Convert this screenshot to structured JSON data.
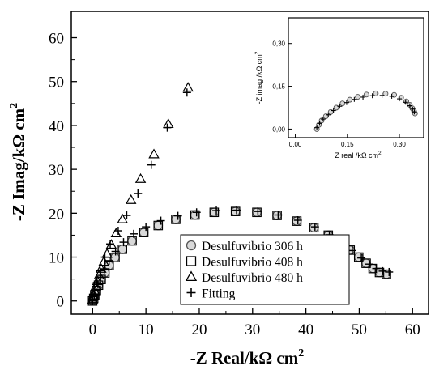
{
  "chart_data": {
    "type": "scatter",
    "xlabel_main": "-Z Real/kΩ cm",
    "xlabel_sup": "2",
    "ylabel_main": "-Z Imag/kΩ cm",
    "ylabel_sup": "2",
    "xlim": [
      -4,
      63
    ],
    "ylim": [
      -3,
      66
    ],
    "xticks": [
      "0",
      "10",
      "20",
      "30",
      "40",
      "50",
      "60"
    ],
    "yticks": [
      "0",
      "10",
      "20",
      "30",
      "40",
      "50",
      "60"
    ],
    "legend_position": "lower-center",
    "series": [
      {
        "name": "Desulfuvibrio 306 h",
        "marker": "circle",
        "points": [
          [
            0,
            0
          ],
          [
            0.2,
            0.6
          ],
          [
            0.4,
            1.4
          ],
          [
            0.7,
            2.4
          ],
          [
            1.1,
            3.6
          ],
          [
            1.6,
            4.9
          ],
          [
            2.3,
            6.4
          ],
          [
            3.1,
            8.1
          ],
          [
            4.2,
            9.9
          ],
          [
            5.6,
            11.8
          ],
          [
            7.4,
            13.7
          ],
          [
            9.6,
            15.6
          ],
          [
            12.3,
            17.2
          ],
          [
            15.6,
            18.6
          ],
          [
            19.2,
            19.6
          ],
          [
            22.8,
            20.2
          ],
          [
            26.8,
            20.4
          ],
          [
            30.8,
            20.2
          ],
          [
            34.6,
            19.5
          ],
          [
            38.3,
            18.2
          ],
          [
            41.5,
            16.7
          ],
          [
            44.2,
            15.0
          ],
          [
            46.4,
            13.3
          ],
          [
            48.3,
            11.6
          ],
          [
            49.9,
            10.0
          ],
          [
            51.3,
            8.6
          ],
          [
            52.6,
            7.4
          ],
          [
            53.8,
            6.5
          ],
          [
            55.1,
            6.1
          ]
        ]
      },
      {
        "name": "Desulfuvibrio 408 h",
        "marker": "square",
        "points": [
          [
            0,
            0
          ],
          [
            0.2,
            0.6
          ],
          [
            0.4,
            1.4
          ],
          [
            0.7,
            2.4
          ],
          [
            1.1,
            3.6
          ],
          [
            1.6,
            4.9
          ],
          [
            2.3,
            6.4
          ],
          [
            3.1,
            8.1
          ],
          [
            4.2,
            9.9
          ],
          [
            5.6,
            11.8
          ],
          [
            7.4,
            13.7
          ],
          [
            9.6,
            15.6
          ],
          [
            12.3,
            17.2
          ],
          [
            15.6,
            18.6
          ],
          [
            19.2,
            19.6
          ],
          [
            22.8,
            20.2
          ],
          [
            26.8,
            20.4
          ],
          [
            30.8,
            20.2
          ],
          [
            34.6,
            19.5
          ],
          [
            38.3,
            18.2
          ],
          [
            41.5,
            16.7
          ],
          [
            44.2,
            15.0
          ],
          [
            46.4,
            13.3
          ],
          [
            48.3,
            11.6
          ],
          [
            49.9,
            10.0
          ],
          [
            51.3,
            8.6
          ],
          [
            52.6,
            7.4
          ],
          [
            53.8,
            6.5
          ],
          [
            55.1,
            6.1
          ]
        ]
      },
      {
        "name": "Desulfuvibrio 480 h",
        "marker": "triangle",
        "points": [
          [
            0,
            0.3
          ],
          [
            0.2,
            1.2
          ],
          [
            0.4,
            2.2
          ],
          [
            0.6,
            3.3
          ],
          [
            0.9,
            4.5
          ],
          [
            1.2,
            5.8
          ],
          [
            1.6,
            7.3
          ],
          [
            2.1,
            8.9
          ],
          [
            2.7,
            10.7
          ],
          [
            3.5,
            12.8
          ],
          [
            4.4,
            15.4
          ],
          [
            5.6,
            18.6
          ],
          [
            7.2,
            23.0
          ],
          [
            9.0,
            27.8
          ],
          [
            11.5,
            33.4
          ],
          [
            14.2,
            40.3
          ],
          [
            17.9,
            48.6
          ]
        ]
      },
      {
        "name": "Fitting",
        "marker": "plus",
        "points": [
          [
            0,
            0
          ],
          [
            0.3,
            1.2
          ],
          [
            0.6,
            2.4
          ],
          [
            1.0,
            3.8
          ],
          [
            1.5,
            5.4
          ],
          [
            2.2,
            7.2
          ],
          [
            3.1,
            9.2
          ],
          [
            4.3,
            11.3
          ],
          [
            5.8,
            13.4
          ],
          [
            7.7,
            15.3
          ],
          [
            10.0,
            16.9
          ],
          [
            12.8,
            18.3
          ],
          [
            16.0,
            19.4
          ],
          [
            19.5,
            20.2
          ],
          [
            23.2,
            20.6
          ],
          [
            27.0,
            20.7
          ],
          [
            31.0,
            20.4
          ],
          [
            34.8,
            19.6
          ],
          [
            38.5,
            18.4
          ],
          [
            41.7,
            16.9
          ],
          [
            44.4,
            15.1
          ],
          [
            46.7,
            13.3
          ],
          [
            48.7,
            11.5
          ],
          [
            50.4,
            9.8
          ],
          [
            51.9,
            8.4
          ],
          [
            53.2,
            7.4
          ],
          [
            54.4,
            6.8
          ],
          [
            55.6,
            6.6
          ],
          [
            0.3,
            1.6
          ],
          [
            0.8,
            4.2
          ],
          [
            1.4,
            6.9
          ],
          [
            2.3,
            10.0
          ],
          [
            3.3,
            13.0
          ],
          [
            4.8,
            16.0
          ],
          [
            6.4,
            19.5
          ],
          [
            8.5,
            24.5
          ],
          [
            11.0,
            31.0
          ],
          [
            14.0,
            39.5
          ],
          [
            17.7,
            47.5
          ]
        ]
      }
    ],
    "inset": {
      "xlabel": "Z real /kΩ cm",
      "xlabel_sup": "2",
      "ylabel": "-Z imag /kΩ cm",
      "ylabel_sup": "2",
      "xlim": [
        -0.02,
        0.37
      ],
      "ylim": [
        -0.03,
        0.39
      ],
      "xticks": [
        "0,00",
        "0,15",
        "0,30"
      ],
      "yticks": [
        "0,00",
        "0,15",
        "0,30"
      ],
      "series": [
        {
          "name": "inset-circles",
          "marker": "circle",
          "points": [
            [
              0.062,
              0.0
            ],
            [
              0.068,
              0.015
            ],
            [
              0.076,
              0.03
            ],
            [
              0.088,
              0.045
            ],
            [
              0.102,
              0.06
            ],
            [
              0.118,
              0.075
            ],
            [
              0.136,
              0.09
            ],
            [
              0.157,
              0.103
            ],
            [
              0.18,
              0.113
            ],
            [
              0.205,
              0.121
            ],
            [
              0.232,
              0.125
            ],
            [
              0.26,
              0.124
            ],
            [
              0.285,
              0.12
            ],
            [
              0.305,
              0.11
            ],
            [
              0.32,
              0.097
            ],
            [
              0.33,
              0.085
            ],
            [
              0.337,
              0.073
            ],
            [
              0.342,
              0.063
            ],
            [
              0.345,
              0.055
            ]
          ]
        },
        {
          "name": "inset-fitting",
          "marker": "plus",
          "points": [
            [
              0.062,
              0.005
            ],
            [
              0.07,
              0.02
            ],
            [
              0.08,
              0.035
            ],
            [
              0.095,
              0.05
            ],
            [
              0.11,
              0.065
            ],
            [
              0.128,
              0.08
            ],
            [
              0.148,
              0.093
            ],
            [
              0.17,
              0.104
            ],
            [
              0.195,
              0.112
            ],
            [
              0.222,
              0.117
            ],
            [
              0.25,
              0.118
            ],
            [
              0.278,
              0.115
            ],
            [
              0.3,
              0.106
            ],
            [
              0.318,
              0.094
            ],
            [
              0.33,
              0.082
            ],
            [
              0.338,
              0.07
            ],
            [
              0.343,
              0.06
            ]
          ]
        }
      ]
    }
  }
}
